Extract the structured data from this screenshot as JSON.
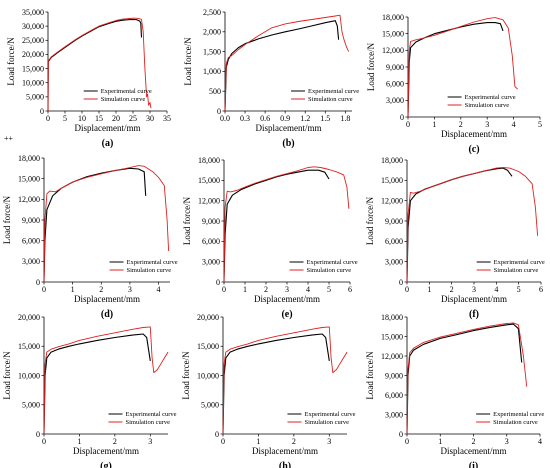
{
  "stray_mark": "++",
  "chart_data": [
    {
      "id": "a",
      "letter": "(a)",
      "type": "line",
      "xlabel": "Displacement/mm",
      "ylabel": "Load force/N",
      "xlim": [
        0,
        35
      ],
      "ylim": [
        0,
        35000
      ],
      "xticks": [
        0,
        5,
        10,
        15,
        20,
        25,
        30,
        35
      ],
      "yticks": [
        0,
        5000,
        10000,
        15000,
        20000,
        25000,
        30000,
        35000
      ],
      "ytick_labels": [
        "0",
        "5,000",
        "10,000",
        "15,000",
        "20,000",
        "25,000",
        "30,000",
        "35,000"
      ],
      "legend_position": "lower-center",
      "series": [
        {
          "name": "Experimental curve",
          "color": "#000000",
          "x": [
            0,
            0.1,
            1,
            3,
            5,
            8,
            10,
            13,
            15,
            18,
            20,
            22,
            24,
            25,
            26,
            27,
            27.3,
            27.5
          ],
          "y": [
            0,
            17500,
            19000,
            20800,
            22500,
            25000,
            26500,
            28500,
            29800,
            31000,
            31700,
            32100,
            32300,
            32400,
            32300,
            31800,
            31000,
            26000
          ]
        },
        {
          "name": "Simulation curve",
          "color": "#e02020",
          "x": [
            0,
            0.1,
            1,
            3,
            5,
            8,
            10,
            13,
            15,
            18,
            20,
            22,
            24,
            25,
            26,
            27,
            27.5,
            28,
            28.5,
            29,
            29.3,
            29.6,
            30,
            30.3
          ],
          "y": [
            0,
            17700,
            19200,
            21000,
            22700,
            25200,
            26700,
            28700,
            30000,
            31200,
            32000,
            32500,
            32700,
            32800,
            32800,
            32600,
            32400,
            28000,
            15000,
            5000,
            6000,
            2000,
            3000,
            1000
          ]
        }
      ]
    },
    {
      "id": "b",
      "letter": "(b)",
      "type": "line",
      "xlabel": "Displacement/mm",
      "ylabel": "Load force/N",
      "xlim": [
        0,
        1.9
      ],
      "ylim": [
        0,
        2500
      ],
      "xticks": [
        0.0,
        0.3,
        0.6,
        0.9,
        1.2,
        1.5,
        1.8
      ],
      "xtick_labels": [
        "0.0",
        "0.3",
        "0.6",
        "0.9",
        "1.2",
        "1.5",
        "1.8"
      ],
      "yticks": [
        0,
        500,
        1000,
        1500,
        2000,
        2500
      ],
      "ytick_labels": [
        "0",
        "500",
        "1,000",
        "1,500",
        "2,000",
        "2,500"
      ],
      "legend_position": "lower-right",
      "series": [
        {
          "name": "Experimental curve",
          "color": "#000000",
          "x": [
            0,
            0.02,
            0.05,
            0.1,
            0.2,
            0.3,
            0.5,
            0.7,
            0.9,
            1.1,
            1.3,
            1.5,
            1.65,
            1.68,
            1.7
          ],
          "y": [
            0,
            1100,
            1300,
            1450,
            1600,
            1700,
            1820,
            1920,
            2000,
            2070,
            2150,
            2230,
            2280,
            2150,
            1800
          ]
        },
        {
          "name": "Simulation curve",
          "color": "#e02020",
          "x": [
            0,
            0.02,
            0.05,
            0.1,
            0.2,
            0.3,
            0.5,
            0.7,
            0.9,
            1.1,
            1.3,
            1.5,
            1.65,
            1.72,
            1.75,
            1.78,
            1.82,
            1.85
          ],
          "y": [
            0,
            1200,
            1350,
            1400,
            1550,
            1680,
            1900,
            2100,
            2200,
            2260,
            2310,
            2360,
            2400,
            2420,
            2000,
            1800,
            1600,
            1500
          ]
        }
      ]
    },
    {
      "id": "c",
      "letter": "(c)",
      "type": "line",
      "xlabel": "Displacement/mm",
      "ylabel": "Load force/N",
      "xlim": [
        0,
        5
      ],
      "ylim": [
        0,
        18000
      ],
      "xticks": [
        0,
        1,
        2,
        3,
        4,
        5
      ],
      "yticks": [
        0,
        3000,
        6000,
        9000,
        12000,
        15000,
        18000
      ],
      "ytick_labels": [
        "0",
        "3,000",
        "6,000",
        "9,000",
        "12,000",
        "15,000",
        "18,000"
      ],
      "legend_position": "lower-center",
      "series": [
        {
          "name": "Experimental curve",
          "color": "#000000",
          "x": [
            0,
            0.05,
            0.1,
            0.3,
            0.6,
            1.0,
            1.5,
            2.0,
            2.5,
            3.0,
            3.3,
            3.5,
            3.6
          ],
          "y": [
            0,
            10000,
            12500,
            13500,
            14200,
            15000,
            15600,
            16200,
            16700,
            17000,
            17000,
            16800,
            15500
          ]
        },
        {
          "name": "Simulation curve",
          "color": "#e02020",
          "x": [
            0,
            0.05,
            0.1,
            0.3,
            0.6,
            1.0,
            1.5,
            2.0,
            2.5,
            3.0,
            3.3,
            3.6,
            3.8,
            3.95,
            4.05,
            4.15
          ],
          "y": [
            0,
            12000,
            13600,
            13900,
            14200,
            14700,
            15500,
            16300,
            17100,
            17700,
            17900,
            17500,
            16000,
            11000,
            5500,
            5000
          ]
        }
      ]
    },
    {
      "id": "d",
      "letter": "(d)",
      "type": "line",
      "xlabel": "Displacement/mm",
      "ylabel": "Load force/N",
      "xlim": [
        0,
        4.4
      ],
      "ylim": [
        0,
        18000
      ],
      "xticks": [
        0,
        1,
        2,
        3,
        4
      ],
      "yticks": [
        0,
        3000,
        6000,
        9000,
        12000,
        15000,
        18000
      ],
      "ytick_labels": [
        "0",
        "3,000",
        "6,000",
        "9,000",
        "12,000",
        "15,000",
        "18,000"
      ],
      "legend_position": "lower-right",
      "series": [
        {
          "name": "Experimental curve",
          "color": "#000000",
          "x": [
            0,
            0.03,
            0.1,
            0.3,
            0.6,
            1.0,
            1.5,
            2.0,
            2.5,
            3.0,
            3.3,
            3.5,
            3.55
          ],
          "y": [
            0,
            6000,
            10500,
            12500,
            13600,
            14500,
            15300,
            15800,
            16200,
            16500,
            16400,
            16000,
            12500
          ]
        },
        {
          "name": "Simulation curve",
          "color": "#e02020",
          "x": [
            0,
            0.03,
            0.1,
            0.2,
            0.4,
            0.6,
            1.0,
            1.5,
            2.0,
            2.5,
            3.0,
            3.3,
            3.5,
            3.8,
            4.0,
            4.2,
            4.3,
            4.35
          ],
          "y": [
            0,
            9000,
            12800,
            13200,
            13100,
            13600,
            14500,
            15200,
            15700,
            16200,
            16600,
            16900,
            16800,
            16000,
            15200,
            14000,
            9000,
            4500
          ]
        }
      ]
    },
    {
      "id": "e",
      "letter": "(e)",
      "type": "line",
      "xlabel": "Displacement/mm",
      "ylabel": "Load force/N",
      "xlim": [
        0,
        6
      ],
      "ylim": [
        0,
        18000
      ],
      "xticks": [
        0,
        1,
        2,
        3,
        4,
        5,
        6
      ],
      "yticks": [
        0,
        3000,
        6000,
        9000,
        12000,
        15000,
        18000
      ],
      "ytick_labels": [
        "0",
        "3,000",
        "6,000",
        "9,000",
        "12,000",
        "15,000",
        "18,000"
      ],
      "legend_position": "lower-right",
      "series": [
        {
          "name": "Experimental curve",
          "color": "#000000",
          "x": [
            0,
            0.05,
            0.15,
            0.4,
            0.8,
            1.5,
            2.0,
            2.5,
            3.0,
            3.5,
            4.0,
            4.5,
            4.8,
            5.0
          ],
          "y": [
            0,
            7000,
            11500,
            12800,
            13600,
            14500,
            15000,
            15500,
            15900,
            16200,
            16500,
            16500,
            16200,
            15200
          ]
        },
        {
          "name": "Simulation curve",
          "color": "#e02020",
          "x": [
            0,
            0.05,
            0.15,
            0.3,
            0.6,
            1.0,
            1.5,
            2.0,
            2.5,
            3.0,
            3.5,
            4.0,
            4.3,
            4.6,
            5.0,
            5.4,
            5.7,
            5.85,
            5.95
          ],
          "y": [
            0,
            11000,
            13400,
            13300,
            13500,
            14000,
            14600,
            15100,
            15600,
            16000,
            16400,
            16900,
            17000,
            16900,
            16600,
            16200,
            15800,
            14000,
            10800
          ]
        }
      ]
    },
    {
      "id": "f",
      "letter": "(f)",
      "type": "line",
      "xlabel": "Displacement/mm",
      "ylabel": "Load force/N",
      "xlim": [
        0,
        6
      ],
      "ylim": [
        0,
        18000
      ],
      "xticks": [
        0,
        1,
        2,
        3,
        4,
        5,
        6
      ],
      "yticks": [
        0,
        3000,
        6000,
        9000,
        12000,
        15000,
        18000
      ],
      "ytick_labels": [
        "0",
        "3,000",
        "6,000",
        "9,000",
        "12,000",
        "15,000",
        "18,000"
      ],
      "legend_position": "lower-right",
      "series": [
        {
          "name": "Experimental curve",
          "color": "#000000",
          "x": [
            0,
            0.05,
            0.15,
            0.4,
            0.8,
            1.5,
            2.0,
            2.5,
            3.0,
            3.5,
            4.0,
            4.3,
            4.5,
            4.7
          ],
          "y": [
            0,
            8000,
            12000,
            13000,
            13700,
            14500,
            15100,
            15600,
            16000,
            16400,
            16700,
            16800,
            16500,
            15600
          ]
        },
        {
          "name": "Simulation curve",
          "color": "#e02020",
          "x": [
            0,
            0.05,
            0.15,
            0.3,
            0.6,
            1.0,
            1.5,
            2.0,
            2.5,
            3.0,
            3.5,
            4.0,
            4.3,
            4.6,
            5.0,
            5.3,
            5.6,
            5.75,
            5.85
          ],
          "y": [
            0,
            10000,
            13200,
            13100,
            13400,
            13900,
            14500,
            15100,
            15600,
            16000,
            16400,
            16800,
            16900,
            16800,
            16300,
            15600,
            14500,
            11000,
            6800
          ]
        }
      ]
    },
    {
      "id": "g",
      "letter": "(g)",
      "type": "line",
      "xlabel": "Displacement/mm",
      "ylabel": "Load force/N",
      "xlim": [
        0,
        3.5
      ],
      "ylim": [
        0,
        20000
      ],
      "xticks": [
        0,
        1,
        2,
        3
      ],
      "yticks": [
        0,
        5000,
        10000,
        15000,
        20000
      ],
      "ytick_labels": [
        "0",
        "5,000",
        "10,000",
        "15,000",
        "20,000"
      ],
      "legend_position": "lower-right",
      "series": [
        {
          "name": "Experimental curve",
          "color": "#000000",
          "x": [
            0,
            0.03,
            0.08,
            0.2,
            0.4,
            0.7,
            1.0,
            1.5,
            2.0,
            2.5,
            2.8,
            2.9,
            3.0
          ],
          "y": [
            0,
            10000,
            13000,
            14000,
            14500,
            15000,
            15400,
            16000,
            16500,
            16900,
            17100,
            16500,
            12500
          ]
        },
        {
          "name": "Simulation curve",
          "color": "#e02020",
          "x": [
            0,
            0.03,
            0.08,
            0.2,
            0.4,
            0.7,
            1.0,
            1.5,
            2.0,
            2.5,
            2.8,
            3.0,
            3.05,
            3.1,
            3.2,
            3.3,
            3.4,
            3.5
          ],
          "y": [
            0,
            12000,
            14000,
            14500,
            14900,
            15400,
            16000,
            16700,
            17300,
            17900,
            18200,
            18300,
            13000,
            10500,
            11000,
            12000,
            13000,
            14000
          ]
        }
      ]
    },
    {
      "id": "h",
      "letter": "(h)",
      "type": "line",
      "xlabel": "Displacement/mm",
      "ylabel": "Load force/N",
      "xlim": [
        0,
        3.5
      ],
      "ylim": [
        0,
        20000
      ],
      "xticks": [
        0,
        1,
        2,
        3
      ],
      "yticks": [
        0,
        5000,
        10000,
        15000,
        20000
      ],
      "ytick_labels": [
        "0",
        "5,000",
        "10,000",
        "15,000",
        "20,000"
      ],
      "legend_position": "lower-right",
      "series": [
        {
          "name": "Experimental curve",
          "color": "#000000",
          "x": [
            0,
            0.03,
            0.08,
            0.2,
            0.4,
            0.7,
            1.0,
            1.5,
            2.0,
            2.5,
            2.8,
            2.9,
            3.0
          ],
          "y": [
            0,
            10000,
            13000,
            14000,
            14500,
            15000,
            15400,
            16000,
            16500,
            16900,
            17100,
            16500,
            12500
          ]
        },
        {
          "name": "Simulation curve",
          "color": "#e02020",
          "x": [
            0,
            0.03,
            0.08,
            0.2,
            0.4,
            0.7,
            1.0,
            1.5,
            2.0,
            2.5,
            2.8,
            3.0,
            3.05,
            3.1,
            3.2,
            3.3,
            3.4,
            3.5
          ],
          "y": [
            0,
            12000,
            14000,
            14500,
            14900,
            15400,
            16000,
            16700,
            17300,
            17900,
            18200,
            18300,
            13000,
            10500,
            11000,
            12000,
            13000,
            14000
          ]
        }
      ]
    },
    {
      "id": "i",
      "letter": "(i)",
      "type": "line",
      "xlabel": "Displacement/mm",
      "ylabel": "Load force/N",
      "xlim": [
        0,
        4
      ],
      "ylim": [
        0,
        18000
      ],
      "xticks": [
        0,
        1,
        2,
        3,
        4
      ],
      "yticks": [
        0,
        3000,
        6000,
        9000,
        12000,
        15000,
        18000
      ],
      "ytick_labels": [
        "0",
        "3,000",
        "6,000",
        "9,000",
        "12,000",
        "15,000",
        "18,000"
      ],
      "legend_position": "lower-right",
      "series": [
        {
          "name": "Experimental curve",
          "color": "#000000",
          "x": [
            0,
            0.03,
            0.08,
            0.2,
            0.5,
            1.0,
            1.5,
            2.0,
            2.5,
            3.0,
            3.2,
            3.35,
            3.45
          ],
          "y": [
            0,
            9000,
            12000,
            12900,
            13800,
            14700,
            15300,
            15900,
            16400,
            16800,
            16900,
            16200,
            11000
          ]
        },
        {
          "name": "Simulation curve",
          "color": "#e02020",
          "x": [
            0,
            0.03,
            0.08,
            0.2,
            0.5,
            1.0,
            1.5,
            2.0,
            2.5,
            3.0,
            3.2,
            3.35,
            3.5,
            3.6
          ],
          "y": [
            0,
            10000,
            12500,
            13200,
            14100,
            14900,
            15500,
            16100,
            16600,
            17000,
            17100,
            16800,
            12000,
            7300
          ]
        }
      ]
    }
  ]
}
